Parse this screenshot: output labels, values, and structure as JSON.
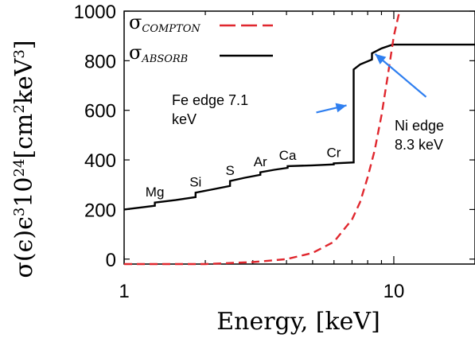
{
  "chart_data": {
    "type": "line",
    "title": "",
    "xlabel": "Energy, [keV]",
    "ylabel_parts": {
      "sigma": "σ",
      "eps": "(ϵ)ϵ",
      "exp3": "3",
      "ten": "10",
      "exp24": "24",
      "unit_open": "[cm",
      "exp2": "2",
      "unit_mid": "keV",
      "exp3b": "3",
      "unit_close": "]"
    },
    "x_scale": "log",
    "xlim": [
      1,
      20
    ],
    "ylim": [
      -20,
      1000
    ],
    "x_ticks": [
      {
        "value": 1,
        "label": "1"
      },
      {
        "value": 10,
        "label": "10"
      }
    ],
    "y_ticks": [
      {
        "value": 0,
        "label": "0"
      },
      {
        "value": 200,
        "label": "200"
      },
      {
        "value": 400,
        "label": "400"
      },
      {
        "value": 600,
        "label": "600"
      },
      {
        "value": 800,
        "label": "800"
      },
      {
        "value": 1000,
        "label": "1000"
      }
    ],
    "legend": {
      "placement": "top-left",
      "items": [
        {
          "sigma": "σ",
          "subscript": "COMPTON",
          "color": "#e0272e",
          "dash": true
        },
        {
          "sigma": "σ",
          "subscript": "ABSORB",
          "color": "#000000",
          "dash": false
        }
      ]
    },
    "series": [
      {
        "key": "absorb",
        "color": "#000000",
        "x": [
          1.0,
          1.3,
          1.3,
          1.55,
          1.84,
          1.84,
          2.1,
          2.47,
          2.47,
          2.8,
          3.2,
          3.2,
          3.6,
          4.04,
          4.04,
          5.0,
          5.99,
          5.99,
          7.1,
          7.1,
          7.5,
          8.3,
          8.3,
          9.0,
          9.9,
          20.0
        ],
        "y": [
          200,
          215,
          228,
          238,
          250,
          268,
          280,
          295,
          315,
          328,
          340,
          350,
          360,
          368,
          375,
          378,
          382,
          386,
          390,
          765,
          785,
          805,
          830,
          850,
          865,
          865
        ]
      },
      {
        "key": "compton",
        "color": "#e0272e",
        "dash": true,
        "x": [
          1.0,
          2.0,
          3.0,
          4.0,
          5.0,
          6.0,
          7.0,
          7.5,
          8.0,
          8.5,
          9.0,
          9.5,
          10.0,
          10.5
        ],
        "y": [
          -20,
          -20,
          -12,
          0,
          25,
          70,
          160,
          230,
          330,
          440,
          580,
          740,
          900,
          1040
        ]
      }
    ],
    "annotations": [
      {
        "key": "fe",
        "lines": [
          "Fe edge 7.1",
          "keV"
        ],
        "arrow_to": [
          7.1,
          620
        ]
      },
      {
        "key": "ni",
        "lines": [
          "Ni edge",
          "8.3 keV"
        ],
        "arrow_to": [
          8.3,
          840
        ]
      }
    ],
    "element_labels": [
      {
        "text": "Mg",
        "x": 1.3,
        "y": 230
      },
      {
        "text": "Si",
        "x": 1.84,
        "y": 270
      },
      {
        "text": "S",
        "x": 2.47,
        "y": 317
      },
      {
        "text": "Ar",
        "x": 3.2,
        "y": 352
      },
      {
        "text": "Ca",
        "x": 4.04,
        "y": 378
      },
      {
        "text": "Cr",
        "x": 5.99,
        "y": 389
      }
    ],
    "colors": {
      "absorb": "#000000",
      "compton": "#e0272e",
      "arrow": "#2f7ff0"
    }
  }
}
